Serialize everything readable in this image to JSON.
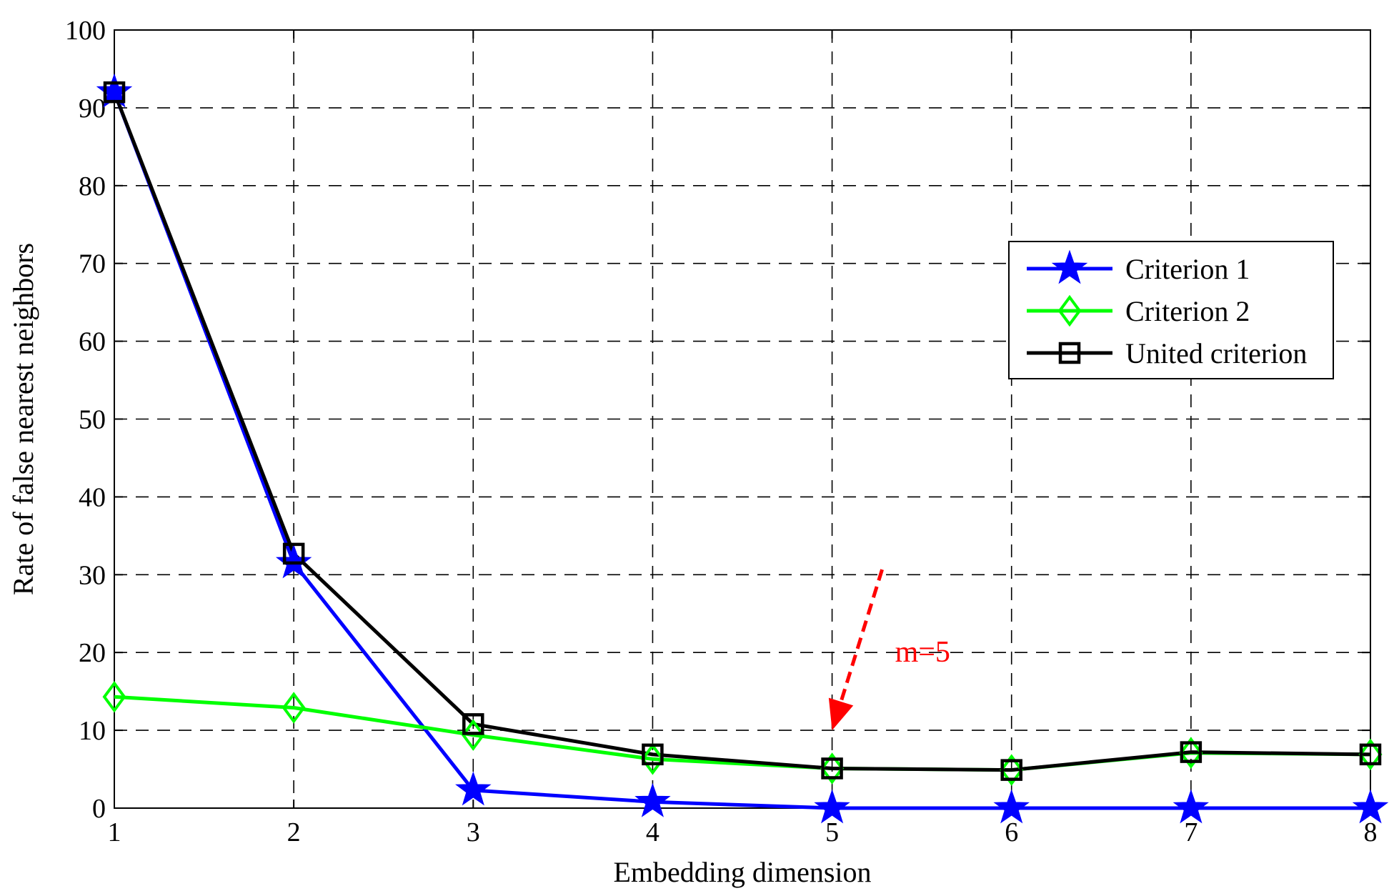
{
  "chart_data": {
    "type": "line",
    "title": "",
    "xlabel": "Embedding dimension",
    "ylabel": "Rate of false nearest neighbors",
    "xlim": [
      1,
      8
    ],
    "ylim": [
      0,
      100
    ],
    "xticks": [
      1,
      2,
      3,
      4,
      5,
      6,
      7,
      8
    ],
    "yticks": [
      0,
      10,
      20,
      30,
      40,
      50,
      60,
      70,
      80,
      90,
      100
    ],
    "grid": true,
    "legend_position": "right",
    "x": [
      1,
      2,
      3,
      4,
      5,
      6,
      7,
      8
    ],
    "series": [
      {
        "name": "Criterion 1",
        "color": "#0000ff",
        "marker": "star",
        "values": [
          92,
          31.5,
          2.3,
          0.8,
          0,
          0,
          0,
          0
        ]
      },
      {
        "name": "Criterion 2",
        "color": "#00ff00",
        "marker": "diamond",
        "values": [
          14.3,
          12.9,
          9.4,
          6.3,
          5.1,
          4.9,
          7.1,
          6.9
        ]
      },
      {
        "name": "United criterion",
        "color": "#000000",
        "marker": "square",
        "values": [
          92,
          32.7,
          10.8,
          6.9,
          5.1,
          4.9,
          7.2,
          6.9
        ]
      }
    ],
    "annotation": {
      "text": "m=5",
      "color": "#ff0000",
      "target_x": 5,
      "target_y": 10
    }
  }
}
